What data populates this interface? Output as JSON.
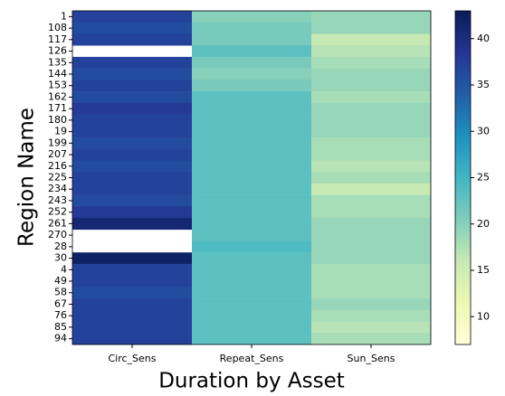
{
  "chart_data": {
    "type": "heatmap",
    "xlabel": "Duration by Asset",
    "ylabel": "Region Name",
    "columns": [
      "Circ_Sens",
      "Repeat_Sens",
      "Sun_Sens"
    ],
    "rows": [
      "1",
      "108",
      "117",
      "126",
      "135",
      "144",
      "153",
      "162",
      "171",
      "180",
      "19",
      "199",
      "207",
      "216",
      "225",
      "234",
      "243",
      "252",
      "261",
      "270",
      "28",
      "30",
      "4",
      "49",
      "58",
      "67",
      "76",
      "85",
      "94"
    ],
    "values": [
      [
        37,
        20,
        19
      ],
      [
        36,
        21,
        19
      ],
      [
        37,
        21,
        16
      ],
      [
        null,
        23,
        17
      ],
      [
        37,
        21,
        18
      ],
      [
        36,
        20,
        19
      ],
      [
        37,
        21,
        19
      ],
      [
        36,
        23,
        18
      ],
      [
        38,
        23,
        19
      ],
      [
        37,
        23,
        19
      ],
      [
        37,
        23,
        19
      ],
      [
        36,
        23,
        18
      ],
      [
        37,
        23,
        18
      ],
      [
        36,
        23,
        17
      ],
      [
        37,
        23,
        18
      ],
      [
        37,
        23,
        16
      ],
      [
        36,
        23,
        18
      ],
      [
        38,
        23,
        18
      ],
      [
        41,
        23,
        19
      ],
      [
        null,
        23,
        19
      ],
      [
        null,
        24,
        19
      ],
      [
        42,
        23,
        19
      ],
      [
        37,
        23,
        18
      ],
      [
        37,
        23,
        18
      ],
      [
        36,
        23,
        18
      ],
      [
        37,
        23,
        19
      ],
      [
        37,
        23,
        18
      ],
      [
        37,
        23,
        17
      ],
      [
        37,
        23,
        18
      ]
    ],
    "colormap": "YlGnBu",
    "zlim": [
      7,
      43
    ],
    "zticks": [
      10,
      15,
      20,
      25,
      30,
      35,
      40
    ]
  }
}
